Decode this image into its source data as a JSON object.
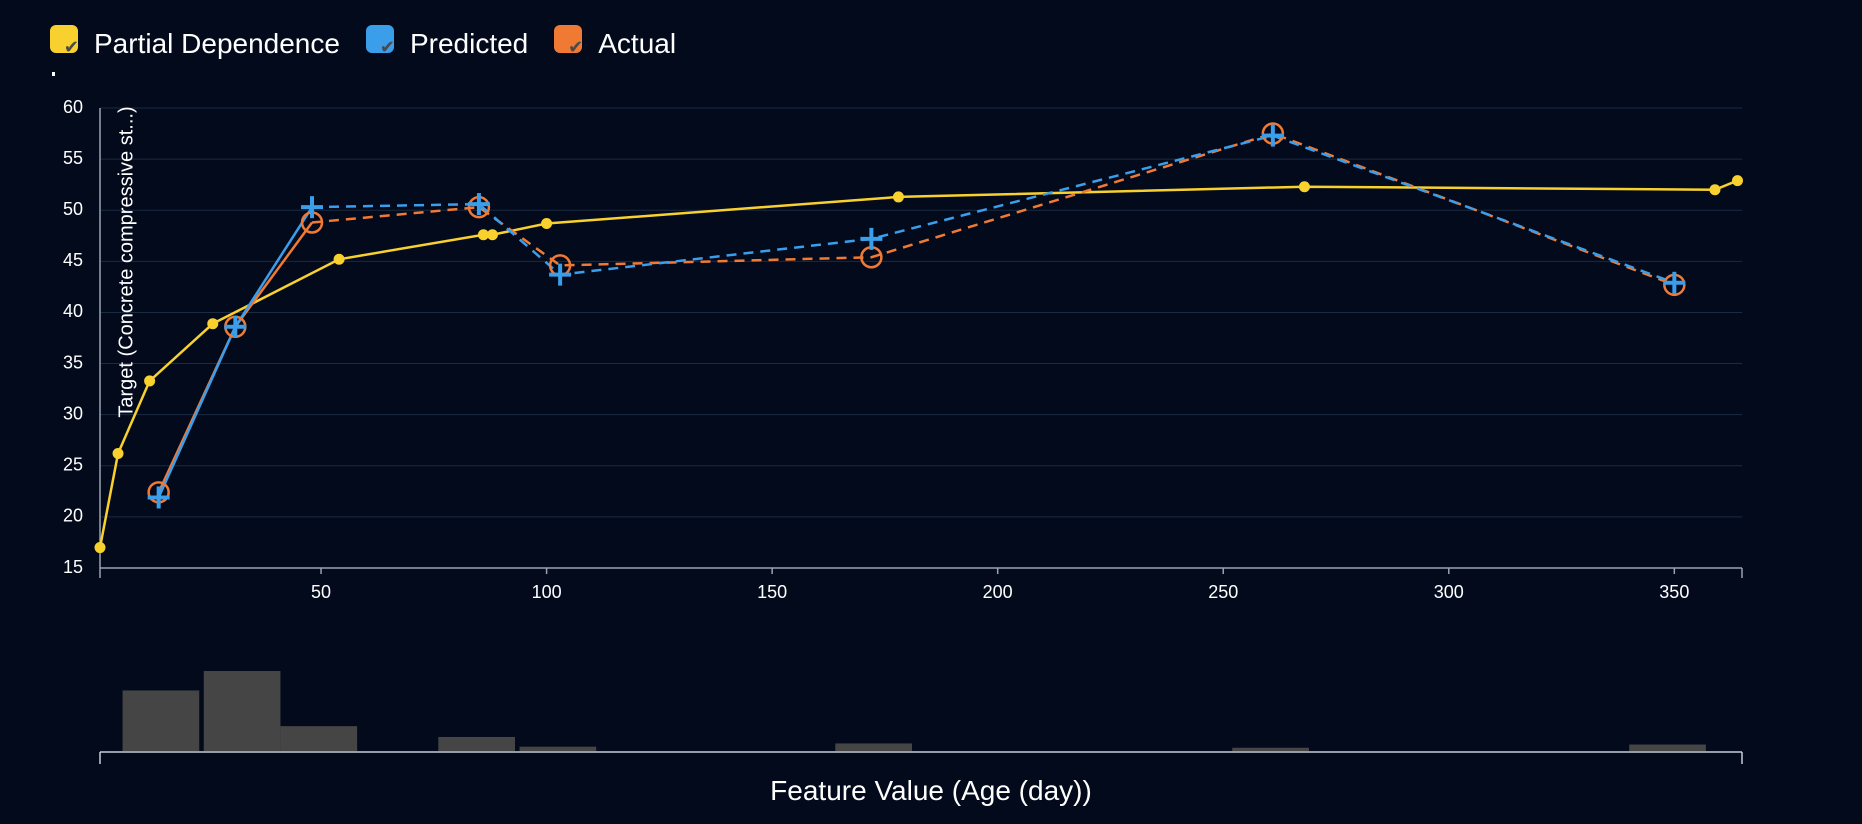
{
  "legend": [
    {
      "label": "Partial Dependence",
      "color": "#f9d12f"
    },
    {
      "label": "Predicted",
      "color": "#3a9eea"
    },
    {
      "label": "Actual",
      "color": "#f07a33"
    }
  ],
  "chart_data": {
    "type": "line",
    "ylabel": "Target (Concrete compressive st...)",
    "xlabel": "Feature Value (Age (day))",
    "xlim": [
      1,
      365
    ],
    "ylim": [
      15,
      60
    ],
    "xticks": [
      50,
      100,
      150,
      200,
      250,
      300,
      350
    ],
    "yticks": [
      15,
      20,
      25,
      30,
      35,
      40,
      45,
      50,
      55,
      60
    ],
    "grid": true,
    "legend_position": "top-left",
    "series": [
      {
        "name": "Partial Dependence",
        "color": "#f9d12f",
        "style": "solid",
        "marker": "dot",
        "x": [
          1,
          5,
          12,
          26,
          54,
          86,
          88,
          100,
          178,
          268,
          359,
          364
        ],
        "y": [
          17.0,
          26.2,
          33.3,
          38.9,
          45.2,
          47.6,
          47.6,
          48.7,
          51.3,
          52.3,
          52.0,
          52.9
        ]
      },
      {
        "name": "Predicted",
        "color": "#3a9eea",
        "style": "mixed",
        "marker": "cross",
        "x": [
          14,
          31,
          48,
          85,
          103,
          172,
          261,
          350
        ],
        "y": [
          21.9,
          38.6,
          50.3,
          50.6,
          43.7,
          47.2,
          57.3,
          42.9
        ]
      },
      {
        "name": "Actual",
        "color": "#f07a33",
        "style": "mixed",
        "marker": "circle",
        "x": [
          14,
          31,
          48,
          85,
          103,
          172,
          261,
          350
        ],
        "y": [
          22.4,
          38.6,
          48.8,
          50.3,
          44.6,
          45.4,
          57.5,
          42.7
        ]
      }
    ],
    "histogram": {
      "bins": [
        [
          6,
          23
        ],
        [
          24,
          41
        ],
        [
          41,
          58
        ],
        [
          76,
          93
        ],
        [
          94,
          111
        ],
        [
          164,
          181
        ],
        [
          252,
          269
        ],
        [
          340,
          357
        ]
      ],
      "counts": [
        56,
        74,
        23,
        13,
        4,
        7,
        3,
        6
      ]
    }
  }
}
